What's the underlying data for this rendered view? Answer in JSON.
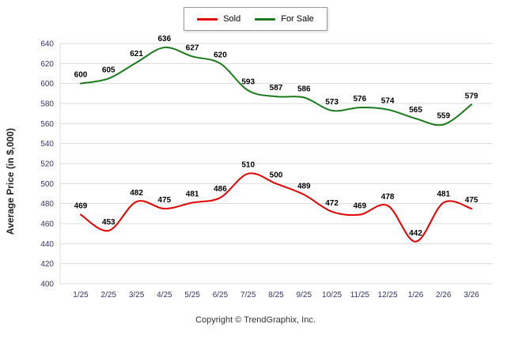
{
  "chart_data": {
    "type": "line",
    "title": "",
    "ylabel": "Average Price (in $,000)",
    "xlabel": "",
    "footer": "Copyright © TrendGraphix, Inc.",
    "ylim": [
      400,
      640
    ],
    "yticks": [
      400,
      420,
      440,
      460,
      480,
      500,
      520,
      540,
      560,
      580,
      600,
      620,
      640
    ],
    "categories": [
      "1/25",
      "2/25",
      "3/25",
      "4/25",
      "5/25",
      "6/25",
      "7/25",
      "8/25",
      "9/25",
      "10/25",
      "11/25",
      "12/25",
      "1/26",
      "2/26",
      "3/26"
    ],
    "series": [
      {
        "name": "Sold",
        "color": "#e60000",
        "values": [
          469,
          453,
          482,
          475,
          481,
          486,
          510,
          500,
          489,
          472,
          469,
          478,
          442,
          481,
          475
        ]
      },
      {
        "name": "For Sale",
        "color": "#1a7a1a",
        "values": [
          600,
          605,
          621,
          636,
          627,
          620,
          593,
          587,
          586,
          573,
          576,
          574,
          565,
          559,
          579
        ]
      }
    ],
    "legend_position": "top",
    "grid": true,
    "grid_color": "#dcdcdc",
    "tick_color": "#333366",
    "label_color": "#000000"
  }
}
